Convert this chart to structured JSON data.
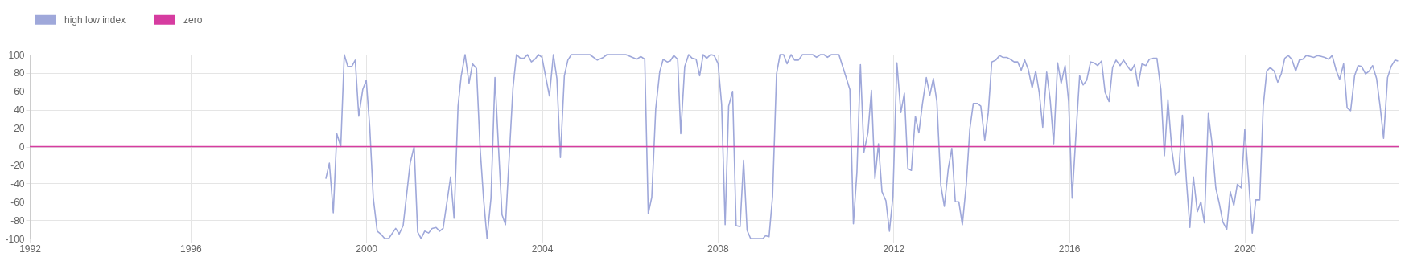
{
  "chart_data": {
    "type": "line",
    "xlim": [
      1992.34,
      2023.5
    ],
    "xticks": [
      {
        "value": 1992.34,
        "label": "1992"
      },
      1996,
      2000,
      2004,
      2008,
      2012,
      2016,
      2020
    ],
    "ylim": [
      -100,
      100
    ],
    "yticks": [
      -100,
      -80,
      -60,
      -40,
      -20,
      0,
      20,
      40,
      60,
      80,
      100
    ],
    "grid": true,
    "legend": "top",
    "series": [
      {
        "name": "high low index",
        "color": "#9fa8da",
        "x": [
          1999.08,
          1999.16,
          1999.25,
          1999.33,
          1999.42,
          1999.5,
          1999.58,
          1999.67,
          1999.75,
          1999.83,
          1999.92,
          2000.0,
          2000.08,
          2000.16,
          2000.25,
          2000.33,
          2000.42,
          2000.51,
          2000.67,
          2000.75,
          2000.84,
          2001.0,
          2001.09,
          2001.17,
          2001.25,
          2001.33,
          2001.42,
          2001.5,
          2001.59,
          2001.67,
          2001.75,
          2001.92,
          2002.0,
          2002.09,
          2002.16,
          2002.25,
          2002.34,
          2002.42,
          2002.51,
          2002.59,
          2002.67,
          2002.75,
          2002.84,
          2002.93,
          2003.01,
          2003.09,
          2003.17,
          2003.34,
          2003.42,
          2003.51,
          2003.59,
          2003.67,
          2003.76,
          2003.84,
          2003.92,
          2004.0,
          2004.17,
          2004.26,
          2004.34,
          2004.42,
          2004.51,
          2004.59,
          2004.67,
          2005.09,
          2005.26,
          2005.4,
          2005.48,
          2005.91,
          2006.16,
          2006.25,
          2006.34,
          2006.42,
          2006.5,
          2006.59,
          2006.68,
          2006.76,
          2006.85,
          2006.92,
          2007.0,
          2007.09,
          2007.16,
          2007.25,
          2007.34,
          2007.42,
          2007.51,
          2007.59,
          2007.67,
          2007.75,
          2007.84,
          2007.92,
          2008.01,
          2008.09,
          2008.17,
          2008.25,
          2008.34,
          2008.42,
          2008.51,
          2008.59,
          2008.67,
          2008.75,
          2009.03,
          2009.09,
          2009.17,
          2009.25,
          2009.34,
          2009.42,
          2009.5,
          2009.58,
          2009.67,
          2009.75,
          2009.84,
          2009.93,
          2010.16,
          2010.25,
          2010.34,
          2010.42,
          2010.5,
          2010.59,
          2010.76,
          2010.86,
          2011.01,
          2011.09,
          2011.17,
          2011.25,
          2011.33,
          2011.42,
          2011.5,
          2011.58,
          2011.66,
          2011.74,
          2011.83,
          2011.91,
          2011.99,
          2012.08,
          2012.17,
          2012.25,
          2012.33,
          2012.41,
          2012.5,
          2012.58,
          2012.66,
          2012.75,
          2012.83,
          2012.91,
          2012.99,
          2013.08,
          2013.16,
          2013.25,
          2013.33,
          2013.41,
          2013.49,
          2013.57,
          2013.66,
          2013.74,
          2013.82,
          2013.91,
          2013.99,
          2014.08,
          2014.16,
          2014.24,
          2014.33,
          2014.42,
          2014.49,
          2014.58,
          2014.66,
          2014.75,
          2014.83,
          2014.91,
          2014.99,
          2015.07,
          2015.16,
          2015.24,
          2015.32,
          2015.4,
          2015.49,
          2015.57,
          2015.65,
          2015.74,
          2015.82,
          2015.91,
          2015.99,
          2016.07,
          2016.15,
          2016.24,
          2016.32,
          2016.4,
          2016.49,
          2016.57,
          2016.65,
          2016.74,
          2016.82,
          2016.91,
          2016.99,
          2017.07,
          2017.16,
          2017.24,
          2017.32,
          2017.41,
          2017.49,
          2017.57,
          2017.66,
          2017.75,
          2017.83,
          2017.92,
          2018.0,
          2018.09,
          2018.17,
          2018.25,
          2018.34,
          2018.42,
          2018.5,
          2018.58,
          2018.67,
          2018.75,
          2018.83,
          2018.92,
          2019.0,
          2019.08,
          2019.17,
          2019.25,
          2019.34,
          2019.42,
          2019.5,
          2019.59,
          2019.67,
          2019.75,
          2019.83,
          2019.92,
          2020.0,
          2020.08,
          2020.17,
          2020.25,
          2020.34,
          2020.42,
          2020.5,
          2020.58,
          2020.67,
          2020.75,
          2020.83,
          2020.91,
          2020.99,
          2021.07,
          2021.16,
          2021.24,
          2021.32,
          2021.4,
          2021.49,
          2021.57,
          2021.66,
          2021.74,
          2021.82,
          2021.91,
          2021.99,
          2022.08,
          2022.16,
          2022.25,
          2022.33,
          2022.41,
          2022.5,
          2022.58,
          2022.66,
          2022.75,
          2022.83,
          2022.91,
          2023.0,
          2023.08,
          2023.16,
          2023.25,
          2023.33,
          2023.42,
          2023.49
        ],
        "values": [
          -35,
          -18,
          -72,
          14,
          0,
          100,
          87,
          87,
          94,
          33,
          62,
          72,
          21,
          -56,
          -92,
          -95,
          -100,
          -100,
          -89,
          -95,
          -86,
          -18,
          0,
          -93,
          -100,
          -92,
          -94,
          -89,
          -88,
          -92,
          -89,
          -33,
          -78,
          44,
          76,
          100,
          69,
          90,
          85,
          0,
          -56,
          -100,
          -56,
          75,
          0,
          -74,
          -85,
          64,
          100,
          96,
          96,
          100,
          92,
          95,
          100,
          97,
          55,
          100,
          74,
          -12,
          77,
          94,
          100,
          100,
          94,
          97,
          100,
          100,
          95,
          98,
          95,
          -73,
          -55,
          41,
          81,
          95,
          92,
          93,
          99,
          95,
          14,
          87,
          100,
          96,
          95,
          77,
          100,
          96,
          100,
          99,
          90,
          46,
          -85,
          44,
          60,
          -86,
          -87,
          -15,
          -91,
          -100,
          -100,
          -97,
          -98,
          -54,
          79,
          100,
          100,
          90,
          100,
          94,
          94,
          100,
          100,
          97,
          100,
          100,
          97,
          100,
          100,
          85,
          62,
          -84,
          -28,
          89,
          -6,
          15,
          61,
          -35,
          3,
          -49,
          -59,
          -92,
          -54,
          91,
          37,
          58,
          -24,
          -26,
          33,
          15,
          46,
          75,
          56,
          74,
          49,
          -42,
          -65,
          -24,
          -2,
          -60,
          -60,
          -85,
          -41,
          19,
          47,
          47,
          44,
          7,
          37,
          92,
          94,
          99,
          97,
          97,
          95,
          92,
          92,
          83,
          94,
          84,
          64,
          82,
          59,
          21,
          81,
          51,
          3,
          91,
          69,
          88,
          49,
          -56,
          8,
          77,
          67,
          72,
          92,
          91,
          88,
          93,
          59,
          49,
          86,
          94,
          88,
          94,
          88,
          82,
          89,
          66,
          90,
          88,
          95,
          96,
          96,
          62,
          -10,
          51,
          -4,
          -31,
          -27,
          34,
          -36,
          -88,
          -33,
          -71,
          -60,
          -83,
          36,
          5,
          -45,
          -62,
          -82,
          -90,
          -49,
          -64,
          -41,
          -45,
          19,
          -31,
          -94,
          -58,
          -58,
          44,
          82,
          86,
          82,
          70,
          79,
          96,
          99,
          95,
          82,
          94,
          95,
          99,
          98,
          97,
          99,
          98,
          97,
          95,
          99,
          83,
          73,
          90,
          42,
          39,
          77,
          88,
          87,
          79,
          82,
          88,
          74,
          44,
          9,
          75,
          87,
          94,
          93
        ]
      },
      {
        "name": "zero",
        "color": "#d63ca0",
        "x": [
          1992.34,
          2023.5
        ],
        "values": [
          0,
          0
        ]
      }
    ]
  }
}
